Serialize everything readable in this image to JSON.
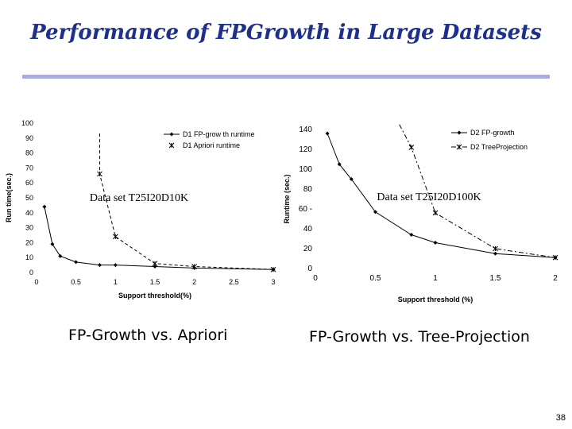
{
  "slide": {
    "title": "Performance of FPGrowth in Large Datasets",
    "page_number": "38"
  },
  "captions": {
    "left": "FP-Growth vs. Apriori",
    "right": "FP-Growth vs. Tree-Projection"
  },
  "chart_data": [
    {
      "type": "line",
      "annotation": "Data set T25I20D10K",
      "xlabel": "Support threshold(%)",
      "ylabel": "Run time(sec.)",
      "xlim": [
        0,
        3
      ],
      "ylim": [
        0,
        100
      ],
      "xticks": [
        "0",
        "0.5",
        "1",
        "1.5",
        "2",
        "2.5",
        "3"
      ],
      "xtick_values": [
        0,
        0.5,
        1,
        1.5,
        2,
        2.5,
        3
      ],
      "yticks": [
        "0",
        "10",
        "20",
        "30",
        "40",
        "50",
        "60",
        "70",
        "80",
        "90",
        "100"
      ],
      "ytick_values": [
        0,
        10,
        20,
        30,
        40,
        50,
        60,
        70,
        80,
        90,
        100
      ],
      "legend_position": "top-right",
      "grid": false,
      "series": [
        {
          "name": "D1 FP-grow th runtime",
          "style": "solid",
          "marker": "diamond",
          "color": "#000000",
          "x": [
            0.1,
            0.2,
            0.3,
            0.5,
            0.8,
            1,
            1.5,
            2,
            3
          ],
          "y": [
            44,
            19,
            11,
            7,
            5,
            5,
            4,
            3,
            2
          ]
        },
        {
          "name": "D1 Apriori runtime",
          "style": "dashed",
          "marker": "star",
          "color": "#000000",
          "x": [
            0.8,
            1,
            1.5,
            2,
            3
          ],
          "y": [
            66,
            24,
            6,
            4,
            2
          ],
          "curve_start": [
            0.8,
            93
          ]
        }
      ]
    },
    {
      "type": "line",
      "annotation": "Data set T25I20D100K",
      "xlabel": "Support threshold (%)",
      "ylabel": "Runtime (sec.)",
      "xlim": [
        0,
        2
      ],
      "ylim": [
        0,
        140
      ],
      "xticks": [
        "0",
        "0.5",
        "1",
        "1.5",
        "2"
      ],
      "xtick_values": [
        0,
        0.5,
        1,
        1.5,
        2
      ],
      "yticks": [
        "0",
        "20",
        "40",
        "60 -",
        "80",
        "100",
        "120",
        "140"
      ],
      "ytick_values": [
        0,
        20,
        40,
        60,
        80,
        100,
        120,
        140
      ],
      "legend_position": "top-right",
      "grid": false,
      "series": [
        {
          "name": "D2 FP-growth",
          "style": "solid",
          "marker": "diamond",
          "color": "#000000",
          "x": [
            0.1,
            0.2,
            0.3,
            0.5,
            0.8,
            1,
            1.5,
            2
          ],
          "y": [
            136,
            105,
            90,
            57,
            34,
            26,
            15,
            11
          ]
        },
        {
          "name": "D2 TreeProjection",
          "style": "dashdot",
          "marker": "star",
          "color": "#000000",
          "x": [
            0.8,
            1,
            1.5,
            2
          ],
          "y": [
            122,
            56,
            20,
            11
          ],
          "curve_start": [
            0.7,
            145
          ]
        }
      ]
    }
  ]
}
